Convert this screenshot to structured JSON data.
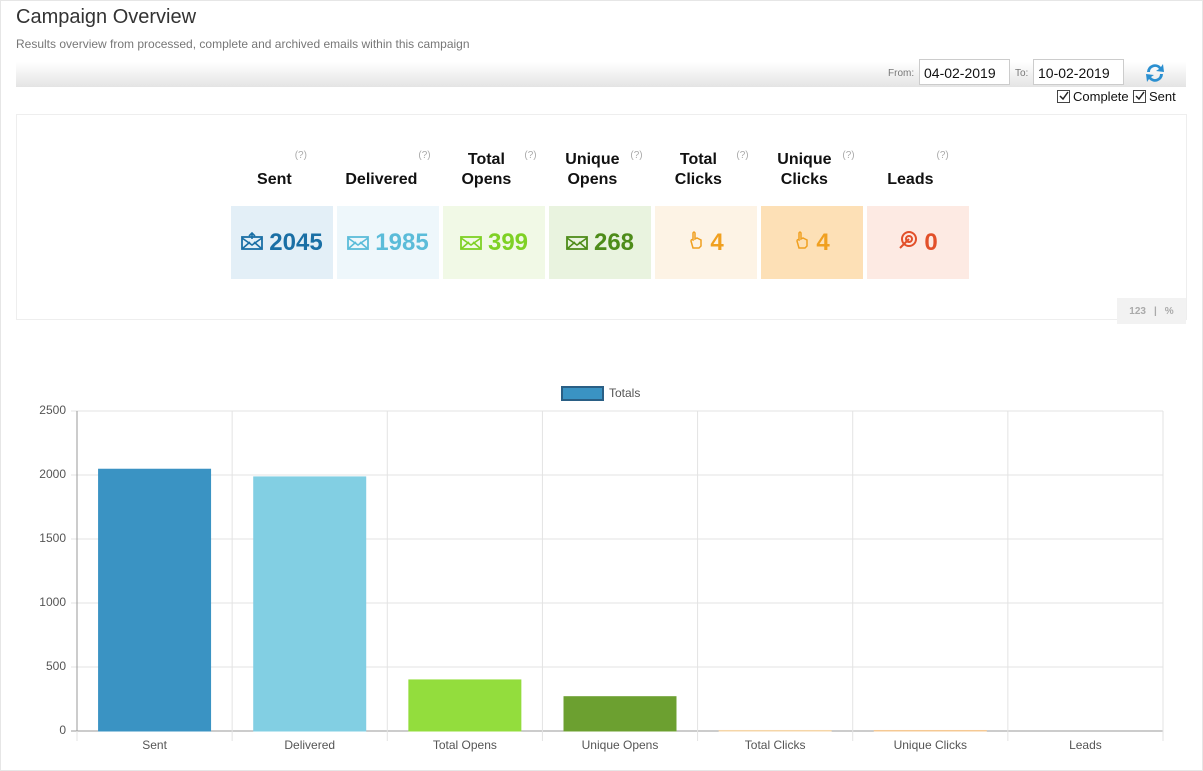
{
  "header": {
    "title": "Campaign Overview",
    "subtitle": "Results overview from processed, complete and archived emails within this campaign"
  },
  "filters": {
    "from_label": "From:",
    "from_value": "04-02-2019",
    "to_label": "To:",
    "to_value": "10-02-2019",
    "checkboxes": [
      "Complete",
      "Sent"
    ]
  },
  "help_marker": "(?)",
  "stats": [
    {
      "label": "Sent",
      "value": 2045
    },
    {
      "label": "Delivered",
      "value": 1985
    },
    {
      "label": "Total Opens",
      "value": 399
    },
    {
      "label": "Unique Opens",
      "value": 268
    },
    {
      "label": "Total Clicks",
      "value": 4
    },
    {
      "label": "Unique Clicks",
      "value": 4
    },
    {
      "label": "Leads",
      "value": 0
    }
  ],
  "toggle": [
    "123",
    "|",
    "%"
  ],
  "chart_data": {
    "type": "bar",
    "categories": [
      "Sent",
      "Delivered",
      "Total Opens",
      "Unique Opens",
      "Total Clicks",
      "Unique Clicks",
      "Leads"
    ],
    "series": [
      {
        "name": "Totals",
        "color": "#3a93c3",
        "values": [
          2045,
          1985,
          399,
          268,
          4,
          4,
          0
        ]
      }
    ],
    "colors": [
      "#3a93c3",
      "#82cfe3",
      "#93dd3d",
      "#6ca030",
      "#f5d6a8",
      "#f5c994",
      "#f6d5c5"
    ],
    "ylim": [
      0,
      2500
    ],
    "yticks": [
      0,
      500,
      1000,
      1500,
      2000,
      2500
    ],
    "grid": true
  }
}
